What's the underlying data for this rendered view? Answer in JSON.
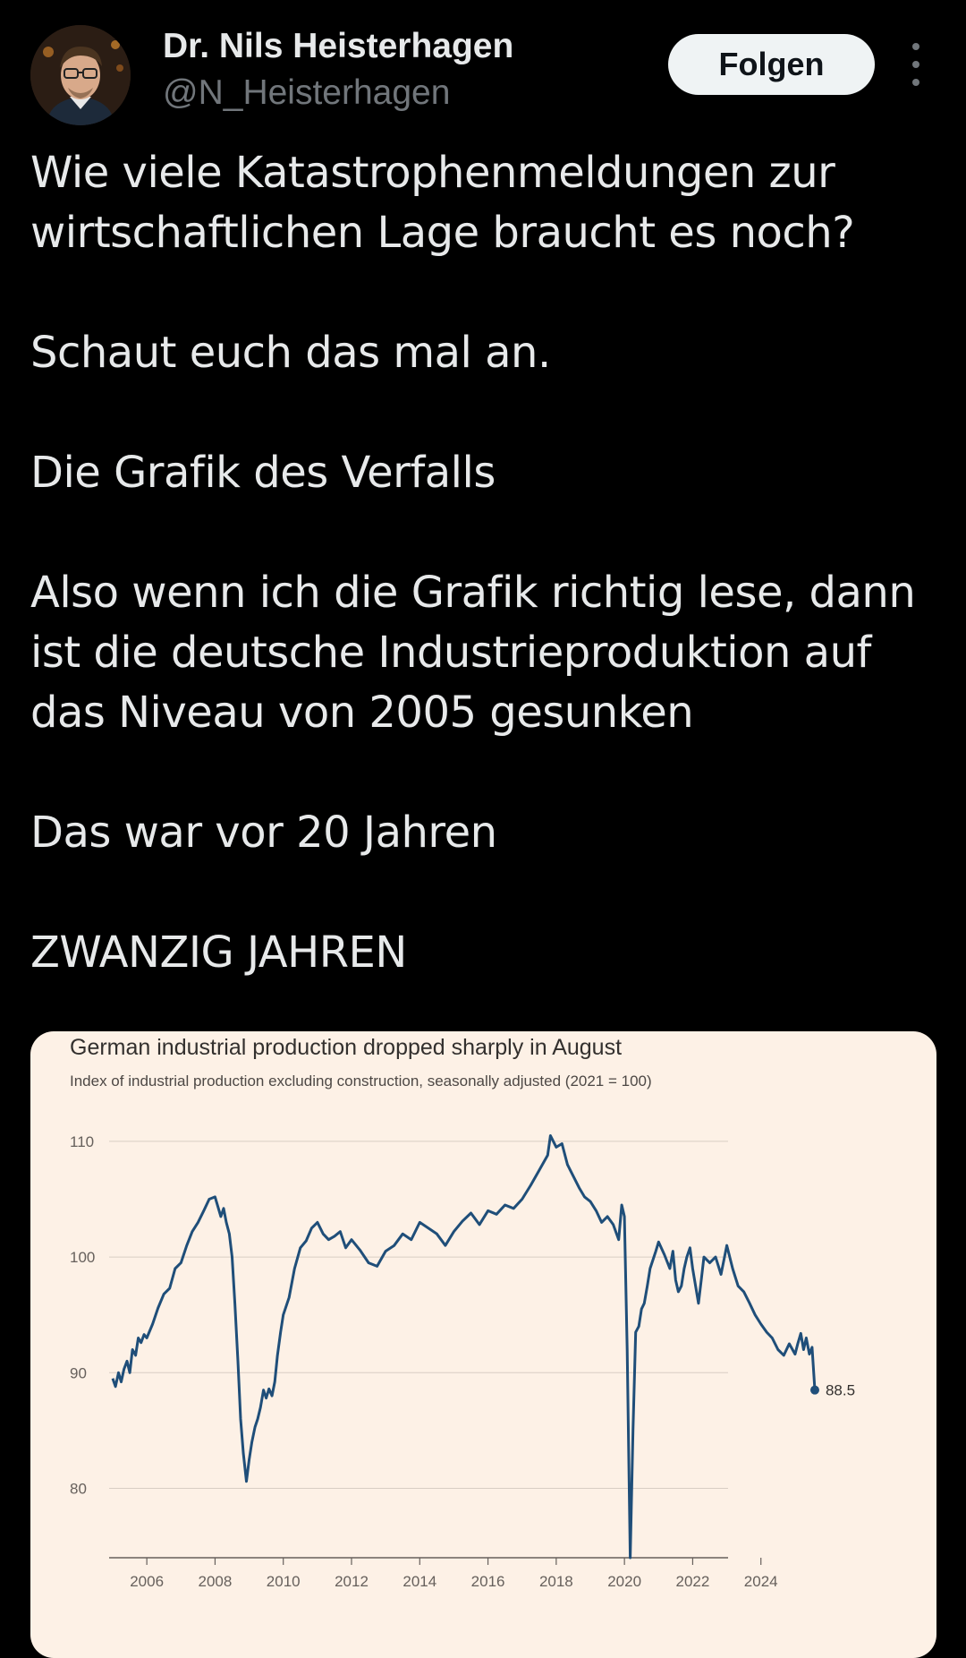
{
  "author": {
    "name": "Dr. Nils Heisterhagen",
    "handle": "@N_Heisterhagen",
    "avatar_icon": "profile-photo"
  },
  "actions": {
    "follow_label": "Folgen",
    "more_icon": "more-vertical-icon"
  },
  "tweet": {
    "paragraphs": [
      "Wie viele Katastrophenmeldungen zur\nwirtschaftlichen Lage braucht es noch?",
      "Schaut euch das mal an.",
      "Die Grafik des Verfalls",
      "Also wenn ich die Grafik richtig lese, dann\nist die deutsche Industrieproduktion auf\ndas Niveau von 2005 gesunken",
      "Das war vor 20 Jahren",
      "ZWANZIG JAHREN"
    ]
  },
  "colors": {
    "background": "#000000",
    "text": "#e7e9ea",
    "muted": "#71767b",
    "card_bg": "#fdf1e6",
    "line": "#1f4e79"
  },
  "chart_data": {
    "type": "line",
    "title": "German industrial production dropped sharply in August",
    "subtitle": "Index of industrial production excluding construction, seasonally adjusted (2021 = 100)",
    "xlabel": "",
    "ylabel": "",
    "xlim": [
      2005.0,
      2026.0
    ],
    "ylim": [
      74,
      111
    ],
    "yticks": [
      80,
      90,
      100,
      110
    ],
    "xticks": [
      "2006",
      "2008",
      "2010",
      "2012",
      "2014",
      "2016",
      "2018",
      "2020",
      "2022",
      "2024"
    ],
    "grid": true,
    "series": [
      {
        "name": "",
        "x": [
          2005.0,
          2005.08,
          2005.17,
          2005.25,
          2005.33,
          2005.42,
          2005.5,
          2005.58,
          2005.67,
          2005.75,
          2005.83,
          2005.92,
          2006.0,
          2006.17,
          2006.33,
          2006.5,
          2006.67,
          2006.83,
          2007.0,
          2007.17,
          2007.33,
          2007.5,
          2007.67,
          2007.83,
          2008.0,
          2008.17,
          2008.25,
          2008.33,
          2008.42,
          2008.5,
          2008.58,
          2008.67,
          2008.75,
          2008.83,
          2008.92,
          2009.0,
          2009.08,
          2009.17,
          2009.25,
          2009.33,
          2009.42,
          2009.5,
          2009.58,
          2009.67,
          2009.75,
          2009.83,
          2009.92,
          2010.0,
          2010.17,
          2010.33,
          2010.5,
          2010.67,
          2010.83,
          2011.0,
          2011.17,
          2011.33,
          2011.5,
          2011.67,
          2011.83,
          2012.0,
          2012.25,
          2012.5,
          2012.75,
          2013.0,
          2013.25,
          2013.5,
          2013.75,
          2014.0,
          2014.25,
          2014.5,
          2014.75,
          2015.0,
          2015.25,
          2015.5,
          2015.75,
          2016.0,
          2016.25,
          2016.5,
          2016.75,
          2017.0,
          2017.25,
          2017.5,
          2017.75,
          2017.83,
          2018.0,
          2018.17,
          2018.33,
          2018.5,
          2018.67,
          2018.83,
          2019.0,
          2019.17,
          2019.33,
          2019.5,
          2019.67,
          2019.83,
          2019.92,
          2020.0,
          2020.08,
          2020.17,
          2020.25,
          2020.33,
          2020.42,
          2020.5,
          2020.58,
          2020.67,
          2020.75,
          2020.92,
          2021.0,
          2021.17,
          2021.33,
          2021.42,
          2021.5,
          2021.58,
          2021.67,
          2021.75,
          2021.83,
          2021.92,
          2022.0,
          2022.17,
          2022.25,
          2022.33,
          2022.5,
          2022.67,
          2022.83,
          2023.0,
          2023.17,
          2023.33,
          2023.5,
          2023.67,
          2023.83,
          2024.0,
          2024.17,
          2024.33,
          2024.5,
          2024.67,
          2024.83,
          2025.0,
          2025.08,
          2025.17,
          2025.25,
          2025.33,
          2025.42,
          2025.5,
          2025.58
        ],
        "values": [
          89.5,
          88.8,
          90.0,
          89.2,
          90.3,
          91.0,
          90.0,
          92.0,
          91.5,
          93.0,
          92.6,
          93.3,
          93.0,
          94.2,
          95.6,
          96.8,
          97.3,
          99.0,
          99.5,
          101.0,
          102.2,
          103.0,
          104.0,
          105.0,
          105.2,
          103.5,
          104.2,
          103.0,
          102.0,
          100.0,
          96.0,
          91.0,
          86.0,
          83.0,
          80.6,
          82.5,
          84.0,
          85.3,
          86.0,
          87.0,
          88.5,
          87.8,
          88.6,
          88.0,
          89.2,
          91.5,
          93.5,
          95.0,
          96.5,
          99.0,
          100.8,
          101.4,
          102.5,
          103.0,
          102.0,
          101.5,
          101.8,
          102.2,
          100.8,
          101.5,
          100.6,
          99.5,
          99.2,
          100.5,
          101.0,
          102.0,
          101.5,
          103.0,
          102.5,
          102.0,
          101.0,
          102.2,
          103.1,
          103.8,
          102.8,
          104.0,
          103.7,
          104.5,
          104.2,
          105.0,
          106.2,
          107.5,
          108.8,
          110.5,
          109.5,
          109.8,
          108.0,
          107.0,
          106.0,
          105.2,
          104.8,
          104.0,
          103.0,
          103.5,
          102.8,
          101.5,
          104.5,
          103.5,
          92.0,
          74.0,
          85.0,
          93.5,
          94.0,
          95.5,
          96.0,
          97.5,
          99.0,
          100.5,
          101.3,
          100.2,
          99.0,
          100.5,
          98.0,
          97.0,
          97.5,
          99.0,
          100.0,
          100.8,
          99.0,
          96.0,
          98.0,
          100.0,
          99.5,
          100.0,
          98.5,
          101.0,
          99.0,
          97.5,
          97.0,
          96.0,
          95.0,
          94.2,
          93.5,
          93.0,
          92.0,
          91.5,
          92.5,
          91.6,
          92.5,
          93.4,
          92.0,
          93.0,
          91.6,
          92.2,
          88.5
        ]
      }
    ],
    "annotations": [
      {
        "x": 2025.58,
        "y": 88.5,
        "text": "88.5"
      }
    ]
  }
}
